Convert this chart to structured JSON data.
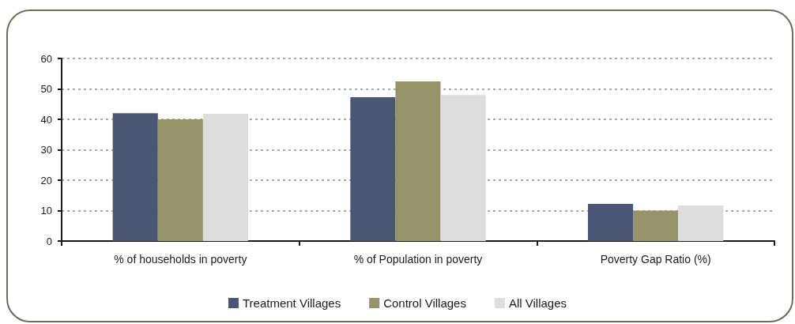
{
  "chart_data": {
    "type": "bar",
    "categories": [
      "% of households in poverty",
      "% of Population in poverty",
      "Poverty Gap Ratio (%)"
    ],
    "series": [
      {
        "name": "Treatment Villages",
        "color": "#4a5676",
        "values": [
          42,
          47.3,
          12.2
        ]
      },
      {
        "name": "Control Villages",
        "color": "#96926a",
        "values": [
          40,
          52.5,
          10
        ]
      },
      {
        "name": "All Villages",
        "color": "#dddddd",
        "values": [
          41.8,
          48,
          11.7
        ]
      }
    ],
    "ylim": [
      0,
      60
    ],
    "yticks": [
      0,
      10,
      20,
      30,
      40,
      50,
      60
    ],
    "grid": "y",
    "legend": "bottom"
  }
}
